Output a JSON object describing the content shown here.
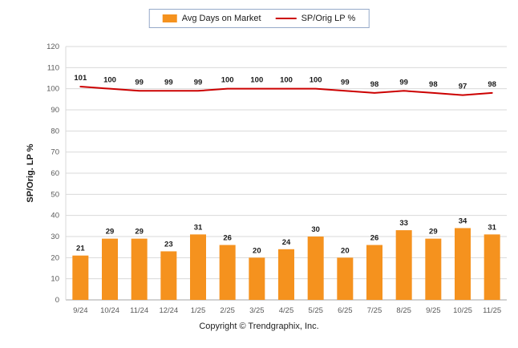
{
  "chart_data": {
    "type": "bar",
    "categories": [
      "9/24",
      "10/24",
      "11/24",
      "12/24",
      "1/25",
      "2/25",
      "3/25",
      "4/25",
      "5/25",
      "6/25",
      "7/25",
      "8/25",
      "9/25",
      "10/25",
      "11/25"
    ],
    "series": [
      {
        "name": "Avg Days on Market",
        "type": "bar",
        "color": "#F5921E",
        "values": [
          21,
          29,
          29,
          23,
          31,
          26,
          20,
          24,
          30,
          20,
          26,
          33,
          29,
          34,
          31
        ]
      },
      {
        "name": "SP/Orig LP %",
        "type": "line",
        "color": "#CC0000",
        "values": [
          101,
          100,
          99,
          99,
          99,
          100,
          100,
          100,
          100,
          99,
          98,
          99,
          98,
          97,
          98
        ]
      }
    ],
    "title": "",
    "xlabel": "",
    "ylabel": "SP/Orig. LP %",
    "ylim": [
      0,
      120
    ],
    "ytick_step": 10,
    "grid": true,
    "legend_position": "top"
  },
  "legend": {
    "bar_label": "Avg Days on Market",
    "line_label": "SP/Orig LP %"
  },
  "colors": {
    "bar": "#F5921E",
    "line": "#CC0000",
    "grid": "#D9D9D9",
    "axis_text": "#595959",
    "value_label": "#1a1a1a",
    "legend_border": "#95A9C9"
  },
  "footer": {
    "copyright": "Copyright © Trendgraphix, Inc."
  }
}
